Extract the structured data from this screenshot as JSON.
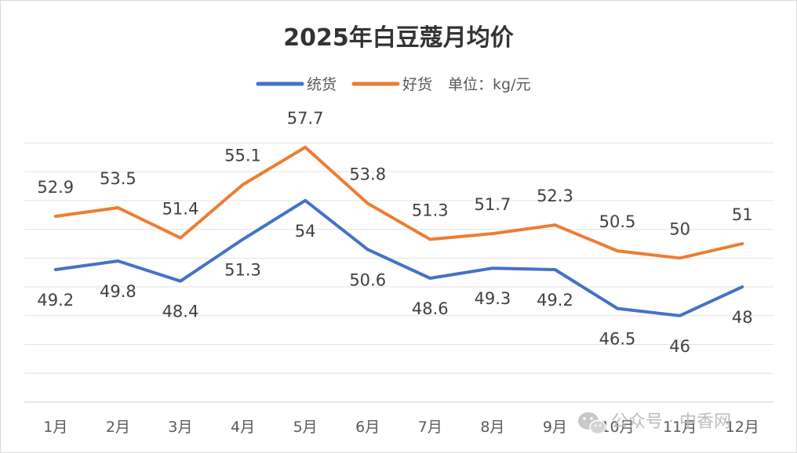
{
  "chart_data": {
    "type": "line",
    "title": "2025年白豆蔻月均价",
    "legend_note": "单位：kg/元",
    "legend_position": "top",
    "grid": true,
    "ylim": [
      40,
      59
    ],
    "categories": [
      "1月",
      "2月",
      "3月",
      "4月",
      "5月",
      "6月",
      "7月",
      "8月",
      "9月",
      "10月",
      "11月",
      "12月"
    ],
    "series": [
      {
        "name": "统货",
        "color": "#4472c4",
        "values": [
          49.2,
          49.8,
          48.4,
          51.3,
          54,
          50.6,
          48.6,
          49.3,
          49.2,
          46.5,
          46,
          48
        ]
      },
      {
        "name": "好货",
        "color": "#ed7d31",
        "values": [
          52.9,
          53.5,
          51.4,
          55.1,
          57.7,
          53.8,
          51.3,
          51.7,
          52.3,
          50.5,
          50,
          51
        ]
      }
    ]
  },
  "watermark": {
    "text": "公众号 · 中香网",
    "icon": "wechat-icon"
  }
}
